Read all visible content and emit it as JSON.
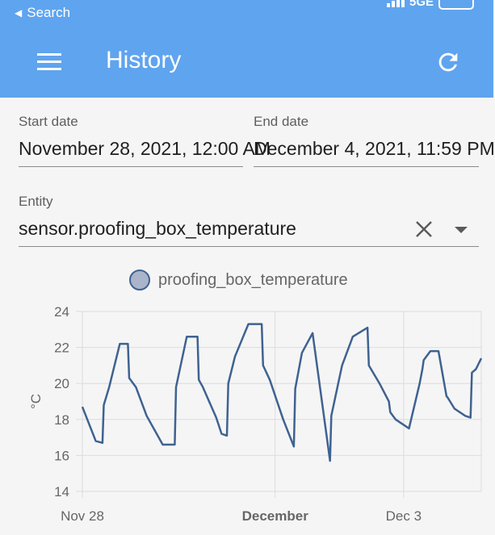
{
  "status_bar": {
    "back_label": "Search",
    "network": "5GE"
  },
  "app_bar": {
    "title": "History"
  },
  "form": {
    "start_date": {
      "label": "Start date",
      "value": "November 28, 2021, 12:00 AM"
    },
    "end_date": {
      "label": "End date",
      "value": "December 4, 2021, 11:59 PM"
    },
    "entity": {
      "label": "Entity",
      "value": "sensor.proofing_box_temperature"
    }
  },
  "colors": {
    "app_bar": "#5fa4ee",
    "series_line": "#3f6291",
    "legend_fill": "#aab4cb"
  },
  "icons": [
    "menu-icon",
    "refresh-icon",
    "close-icon",
    "chevron-down-icon"
  ],
  "chart_data": {
    "type": "line",
    "legend": "top",
    "grid": true,
    "ylabel": "°C",
    "ylim": [
      14,
      24
    ],
    "yticks": [
      14,
      16,
      18,
      20,
      22,
      24
    ],
    "xlim": [
      "2021-11-28T00:00",
      "2021-12-04T05:00"
    ],
    "xticks": [
      {
        "label": "Nov 28",
        "x": "2021-11-28T00:00",
        "bold": false
      },
      {
        "label": "December",
        "x": "2021-12-01T00:00",
        "bold": true
      },
      {
        "label": "Dec 3",
        "x": "2021-12-03T00:00",
        "bold": false
      }
    ],
    "series": [
      {
        "name": "proofing_box_temperature",
        "x": [
          "2021-11-28T00:00",
          "2021-11-28T05:00",
          "2021-11-28T07:30",
          "2021-11-28T08:00",
          "2021-11-28T10:00",
          "2021-11-28T14:00",
          "2021-11-28T17:00",
          "2021-11-28T17:30",
          "2021-11-28T20:00",
          "2021-11-29T00:00",
          "2021-11-29T06:00",
          "2021-11-29T10:30",
          "2021-11-29T11:00",
          "2021-11-29T15:00",
          "2021-11-29T19:00",
          "2021-11-29T19:30",
          "2021-11-29T21:00",
          "2021-11-30T02:00",
          "2021-11-30T04:00",
          "2021-11-30T06:00",
          "2021-11-30T06:30",
          "2021-11-30T09:00",
          "2021-11-30T14:00",
          "2021-11-30T19:00",
          "2021-11-30T19:30",
          "2021-11-30T22:00",
          "2021-12-01T03:00",
          "2021-12-01T07:00",
          "2021-12-01T07:30",
          "2021-12-01T10:00",
          "2021-12-01T14:00",
          "2021-12-01T20:30",
          "2021-12-01T21:00",
          "2021-12-02T01:00",
          "2021-12-02T05:00",
          "2021-12-02T10:30",
          "2021-12-02T11:00",
          "2021-12-02T15:00",
          "2021-12-02T18:30",
          "2021-12-02T19:00",
          "2021-12-02T21:00",
          "2021-12-03T02:00",
          "2021-12-03T06:00",
          "2021-12-03T07:00",
          "2021-12-03T07:30",
          "2021-12-03T10:00",
          "2021-12-03T13:00",
          "2021-12-03T16:00",
          "2021-12-03T16:30",
          "2021-12-03T19:00",
          "2021-12-03T23:00",
          "2021-12-04T01:00",
          "2021-12-04T01:30",
          "2021-12-04T03:00",
          "2021-12-04T05:00"
        ],
        "values": [
          18.7,
          16.8,
          16.7,
          18.8,
          19.8,
          22.2,
          22.2,
          20.3,
          19.8,
          18.2,
          16.6,
          16.6,
          19.8,
          22.6,
          22.6,
          20.2,
          19.8,
          18.1,
          17.2,
          17.1,
          20.0,
          21.5,
          23.3,
          23.3,
          21.0,
          20.2,
          18.0,
          16.5,
          19.7,
          21.7,
          22.8,
          15.7,
          18.2,
          21.0,
          22.6,
          23.1,
          21.0,
          20.0,
          19.0,
          18.4,
          18.0,
          17.5,
          20.0,
          20.8,
          21.3,
          21.8,
          21.8,
          19.3,
          19.2,
          18.6,
          18.2,
          18.1,
          20.6,
          20.8,
          21.4
        ]
      }
    ]
  }
}
